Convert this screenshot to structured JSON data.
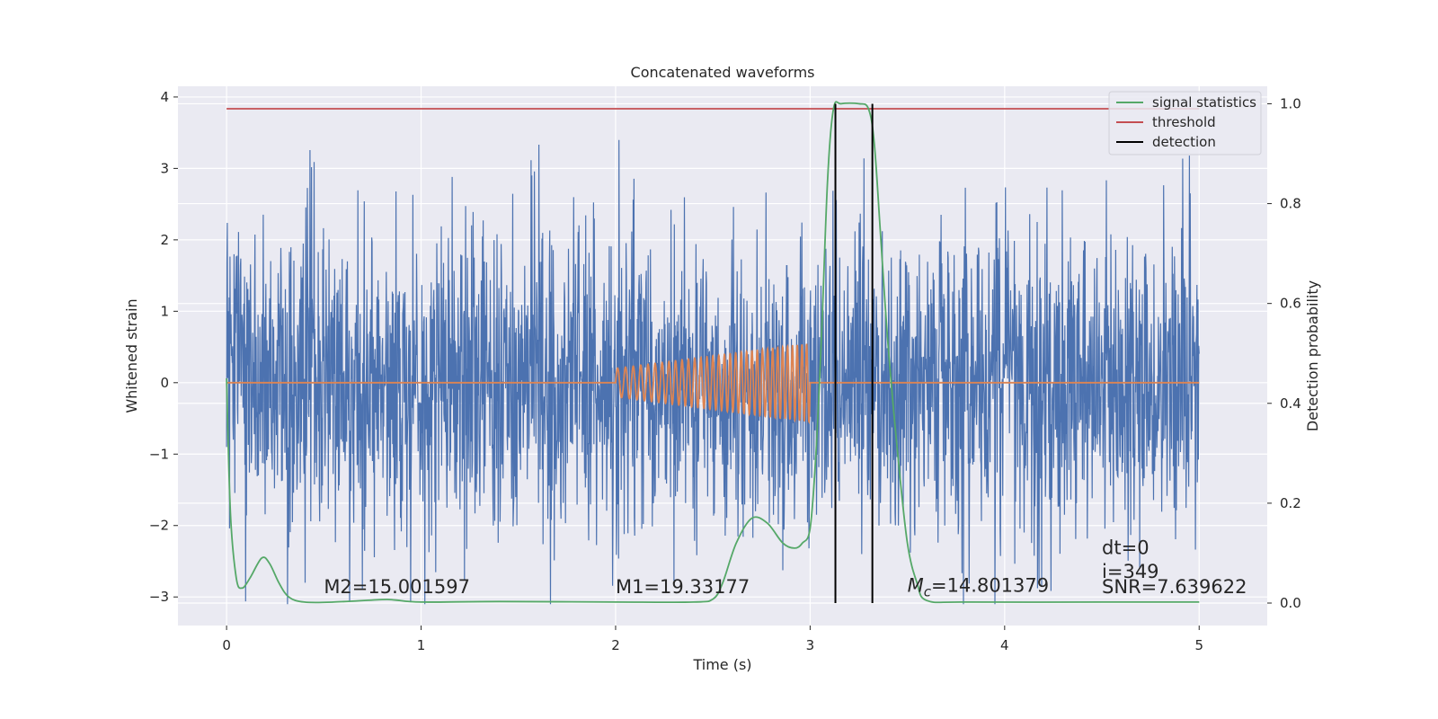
{
  "chart_data": {
    "type": "line",
    "title": "Concatenated waveforms",
    "xlabel": "Time (s)",
    "ylabel_left": "Whitened strain",
    "ylabel_right": "Detection probability",
    "xlim": [
      -0.25,
      5.35
    ],
    "ylim_left": [
      -3.4,
      4.15
    ],
    "ylim_right": [
      -0.045,
      1.035
    ],
    "xticks": [
      0,
      1,
      2,
      3,
      4,
      5
    ],
    "yticks_left": [
      -3,
      -2,
      -1,
      0,
      1,
      2,
      3,
      4
    ],
    "yticks_right": [
      0.0,
      0.2,
      0.4,
      0.6,
      0.8,
      1.0
    ],
    "xtick_labels": [
      "0",
      "1",
      "2",
      "3",
      "4",
      "5"
    ],
    "ytick_labels_left": [
      "−3",
      "−2",
      "−1",
      "0",
      "1",
      "2",
      "3",
      "4"
    ],
    "ytick_labels_right": [
      "0.0",
      "0.2",
      "0.4",
      "0.6",
      "0.8",
      "1.0"
    ],
    "grid": true,
    "legend_position": "top-right",
    "colors": {
      "strain": "#4c72b0",
      "template": "#dd8452",
      "statistics": "#55a868",
      "threshold": "#c44e52",
      "detection": "#000000",
      "background": "#eaeaf2",
      "grid": "#ffffff"
    },
    "series": [
      {
        "name": "",
        "axis": "left",
        "kind": "whitened strain noise",
        "x_range": [
          0,
          5
        ],
        "approx_range": [
          -3.1,
          3.8
        ]
      },
      {
        "name": "",
        "axis": "left",
        "kind": "injected chirp template",
        "nonzero_range": [
          2.0,
          3.0
        ],
        "amplitude_start": 0.2,
        "amplitude_end": 0.55
      },
      {
        "name": "signal statistics",
        "axis": "right",
        "x": [
          0,
          0.02,
          0.05,
          0.08,
          0.12,
          0.18,
          0.22,
          0.27,
          0.32,
          0.4,
          0.55,
          0.8,
          0.87,
          1.0,
          1.4,
          2.0,
          2.4,
          2.5,
          2.55,
          2.62,
          2.7,
          2.78,
          2.86,
          2.92,
          2.96,
          3.0,
          3.03,
          3.06,
          3.09,
          3.12,
          3.16,
          3.25,
          3.3,
          3.33,
          3.36,
          3.4,
          3.45,
          3.5,
          3.55,
          3.6,
          3.8,
          4.5,
          5.0
        ],
        "values": [
          0.45,
          0.18,
          0.05,
          0.03,
          0.05,
          0.09,
          0.08,
          0.04,
          0.012,
          0.002,
          0.002,
          0.007,
          0.006,
          0.002,
          0.003,
          0.002,
          0.002,
          0.008,
          0.04,
          0.12,
          0.17,
          0.16,
          0.12,
          0.11,
          0.12,
          0.15,
          0.3,
          0.55,
          0.85,
          0.99,
          1.0,
          1.0,
          0.99,
          0.92,
          0.75,
          0.52,
          0.3,
          0.12,
          0.04,
          0.005,
          0.002,
          0.002,
          0.002
        ]
      },
      {
        "name": "threshold",
        "axis": "right",
        "value": 0.99,
        "x_range": [
          0,
          5
        ]
      },
      {
        "name": "detection",
        "axis": "right",
        "x": [
          3.13,
          3.32
        ],
        "y_range": [
          0,
          1.0
        ]
      }
    ],
    "annotations": [
      {
        "text": "M2=15.001597",
        "x": 0.5,
        "y": -2.95
      },
      {
        "text": "M1=19.33177",
        "x": 2.0,
        "y": -2.95
      },
      {
        "text_parts": [
          "M",
          "c",
          "=14.801379"
        ],
        "x": 3.5,
        "y": -2.93
      },
      {
        "text": "dt=0",
        "x": 4.5,
        "y": -2.4
      },
      {
        "text": "i=349",
        "x": 4.5,
        "y": -2.73
      },
      {
        "text": "SNR=7.639622",
        "x": 4.5,
        "y": -2.95
      }
    ]
  }
}
